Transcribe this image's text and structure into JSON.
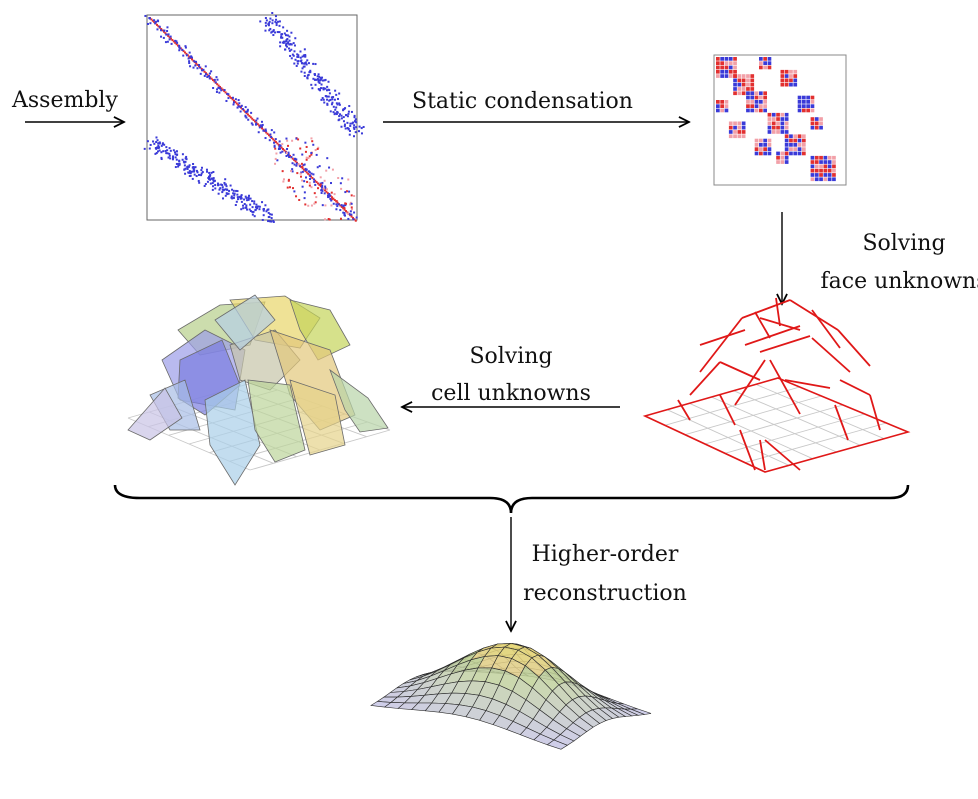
{
  "labels": {
    "assembly": "Assembly",
    "static_condensation": "Static condensation",
    "solving_face_line1": "Solving",
    "solving_face_line2": "face unknowns",
    "solving_cell_line1": "Solving",
    "solving_cell_line2": "cell unknowns",
    "reconstruction_line1": "Higher-order",
    "reconstruction_line2": "reconstruction"
  },
  "colors": {
    "arrow": "#000000",
    "matrix_frame": "#555555",
    "matrix_blue": "#3a3ad8",
    "matrix_red": "#e23030",
    "matrix_pink": "#f2a0a8",
    "wireframe": "#e01818",
    "grid": "#c8c8c8",
    "brace": "#000000"
  },
  "figures": [
    {
      "name": "global-sparse-matrix"
    },
    {
      "name": "condensed-face-matrix"
    },
    {
      "name": "face-unknowns-wireframe"
    },
    {
      "name": "cell-unknowns-patches"
    },
    {
      "name": "reconstructed-surface"
    }
  ]
}
